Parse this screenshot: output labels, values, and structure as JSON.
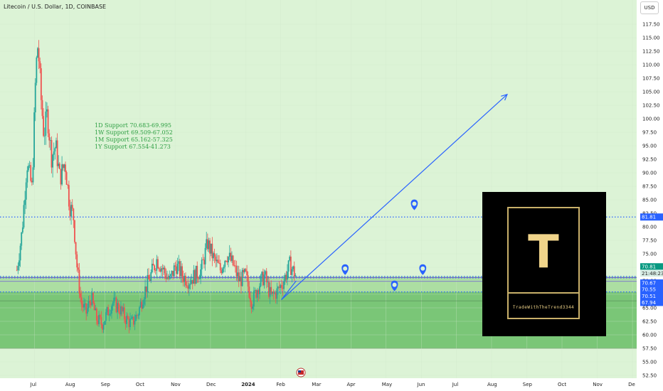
{
  "header": {
    "symbol_title": "Litecoin / U.S. Dollar, 1D, COINBASE",
    "currency": "USD"
  },
  "annotations": {
    "support_lines": [
      "1D Support 70.683-69.995",
      "1W Support 69.509-67.052",
      "1M Support 65.162-57.325",
      "1Y Support 67.554-41.273"
    ]
  },
  "logo": {
    "letter": "T",
    "caption": "TradeWithTheTrend3344"
  },
  "colors": {
    "bg_light_green": "#dcf3d6",
    "bg_mid_green": "#a6dc9c",
    "bg_dark_green": "#6fc16d",
    "bull": "#26a69a",
    "bear": "#ef5350",
    "trend_blue": "#2962ff",
    "grid": "#cfe6ca"
  },
  "chart_data": {
    "type": "candlestick",
    "title": "Litecoin / U.S. Dollar, 1D, COINBASE",
    "xlabel": "",
    "ylabel": "",
    "ylim": [
      52.5,
      120
    ],
    "y_ticks": [
      117.5,
      115.0,
      112.5,
      110.0,
      107.5,
      105.0,
      102.5,
      100.0,
      97.5,
      95.0,
      92.5,
      90.0,
      87.5,
      85.0,
      82.5,
      80.0,
      77.5,
      75.0,
      72.5,
      70.0,
      67.5,
      65.0,
      62.5,
      60.0,
      57.5,
      55.0,
      52.5
    ],
    "x_ticks": [
      "Jul",
      "Aug",
      "Sep",
      "Oct",
      "Nov",
      "Dec",
      "2024",
      "Feb",
      "Mar",
      "Apr",
      "May",
      "Jun",
      "Jul",
      "Aug",
      "Sep",
      "Oct",
      "Nov",
      "De"
    ],
    "x_tick_months": [
      2023.5,
      2023.583,
      2023.667,
      2023.75,
      2023.833,
      2023.917,
      2024.0,
      2024.083,
      2024.167,
      2024.25,
      2024.333,
      2024.417,
      2024.5,
      2024.583,
      2024.667,
      2024.75,
      2024.833,
      2024.917
    ],
    "price_path": [
      [
        2023.458,
        72
      ],
      [
        2023.47,
        79
      ],
      [
        2023.482,
        92
      ],
      [
        2023.494,
        87
      ],
      [
        2023.503,
        109
      ],
      [
        2023.508,
        114
      ],
      [
        2023.515,
        104
      ],
      [
        2023.522,
        97
      ],
      [
        2023.53,
        101
      ],
      [
        2023.54,
        93
      ],
      [
        2023.55,
        95
      ],
      [
        2023.56,
        89
      ],
      [
        2023.572,
        92
      ],
      [
        2023.583,
        84
      ],
      [
        2023.592,
        82
      ],
      [
        2023.6,
        73
      ],
      [
        2023.61,
        66
      ],
      [
        2023.622,
        64
      ],
      [
        2023.634,
        67
      ],
      [
        2023.646,
        63
      ],
      [
        2023.66,
        62
      ],
      [
        2023.672,
        64
      ],
      [
        2023.684,
        66
      ],
      [
        2023.7,
        65
      ],
      [
        2023.716,
        63
      ],
      [
        2023.73,
        62
      ],
      [
        2023.745,
        64
      ],
      [
        2023.76,
        68
      ],
      [
        2023.775,
        71
      ],
      [
        2023.79,
        74
      ],
      [
        2023.805,
        72
      ],
      [
        2023.82,
        70
      ],
      [
        2023.835,
        73
      ],
      [
        2023.85,
        71
      ],
      [
        2023.865,
        70
      ],
      [
        2023.88,
        71
      ],
      [
        2023.895,
        72
      ],
      [
        2023.91,
        77
      ],
      [
        2023.925,
        74
      ],
      [
        2023.94,
        72
      ],
      [
        2023.955,
        75
      ],
      [
        2023.97,
        73
      ],
      [
        2023.985,
        70
      ],
      [
        2024.0,
        71
      ],
      [
        2024.015,
        66
      ],
      [
        2024.03,
        69
      ],
      [
        2024.045,
        71
      ],
      [
        2024.06,
        67
      ],
      [
        2024.075,
        68
      ],
      [
        2024.09,
        70
      ],
      [
        2024.105,
        73
      ],
      [
        2024.12,
        70.8
      ]
    ],
    "support_levels": [
      81.81,
      70.81,
      70.67,
      70.55,
      70.51,
      67.94
    ],
    "zones": [
      {
        "from": 70.51,
        "to": 70.81
      },
      {
        "from": 67.94,
        "to": 70.51
      },
      {
        "from": 57.5,
        "to": 67.94
      }
    ],
    "trendline": {
      "start": [
        2024.085,
        66.5
      ],
      "end": [
        2024.62,
        104.5
      ]
    },
    "markers": [
      {
        "x": 2024.236,
        "y": 72.0
      },
      {
        "x": 2024.353,
        "y": 69.0
      },
      {
        "x": 2024.42,
        "y": 72.0
      },
      {
        "x": 2024.4,
        "y": 84.0
      }
    ],
    "price_labels": [
      {
        "value": "70.81",
        "kind": "last"
      },
      {
        "value": "21:48:23",
        "kind": "countdown"
      },
      {
        "value": "81.81",
        "kind": "level"
      },
      {
        "value": "70.67",
        "kind": "level"
      },
      {
        "value": "70.55",
        "kind": "level"
      },
      {
        "value": "70.51",
        "kind": "level"
      },
      {
        "value": "67.94",
        "kind": "level"
      }
    ]
  }
}
